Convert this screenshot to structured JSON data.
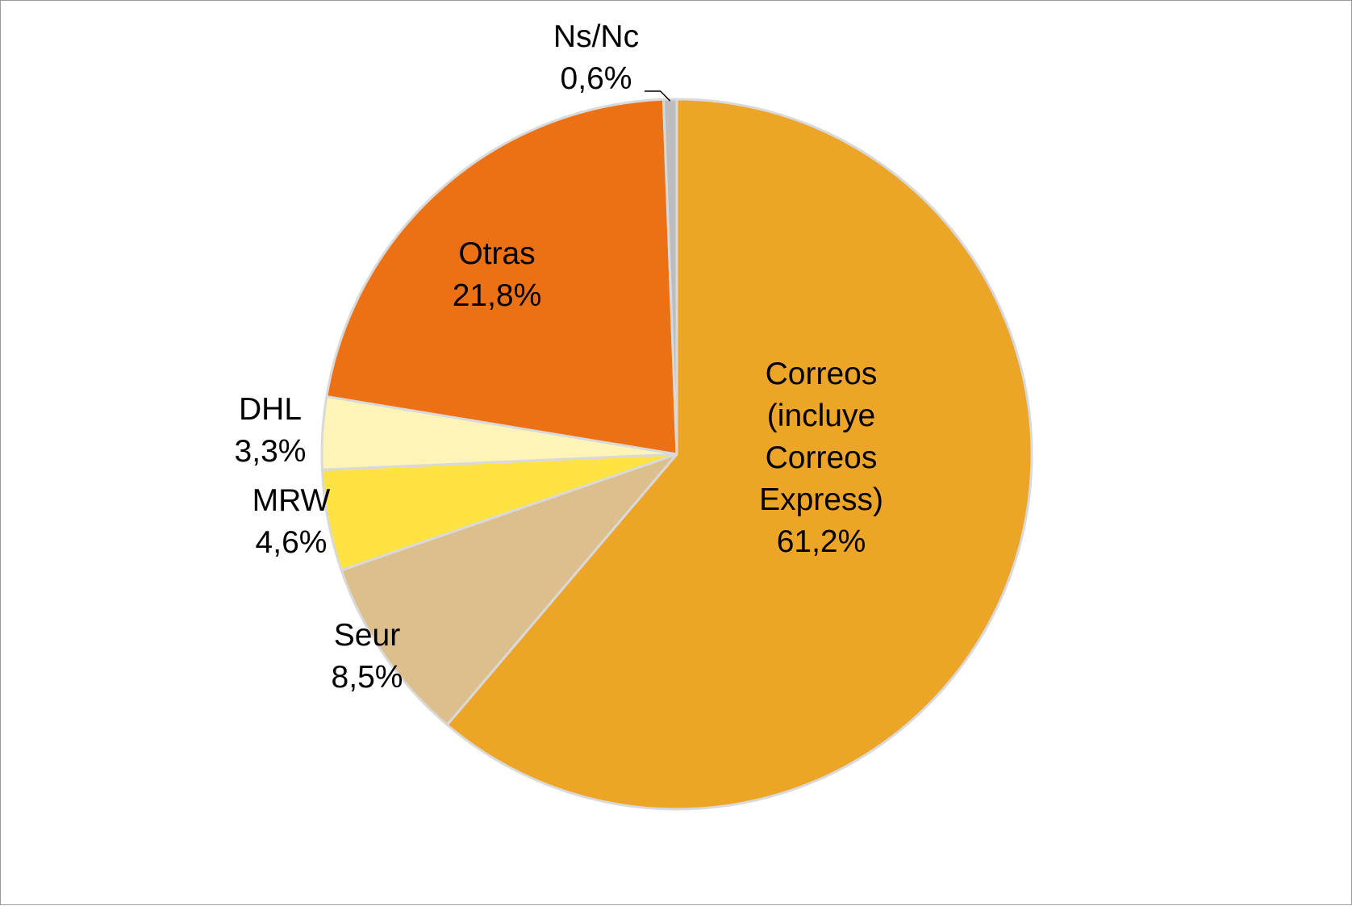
{
  "chart_data": {
    "type": "pie",
    "title": "",
    "start_angle_deg": 0,
    "direction": "clockwise",
    "slices": [
      {
        "name": "Correos (incluye Correos Express)",
        "label_lines": [
          "Correos",
          "(incluye",
          "Correos",
          "Express)"
        ],
        "value": 61.2,
        "value_label": "61,2%",
        "color": "#EDA528"
      },
      {
        "name": "Seur",
        "label_lines": [
          "Seur"
        ],
        "value": 8.5,
        "value_label": "8,5%",
        "color": "#DDBF8D"
      },
      {
        "name": "MRW",
        "label_lines": [
          "MRW"
        ],
        "value": 4.6,
        "value_label": "4,6%",
        "color": "#FFE343"
      },
      {
        "name": "DHL",
        "label_lines": [
          "DHL"
        ],
        "value": 3.3,
        "value_label": "3,3%",
        "color": "#FFF4B7"
      },
      {
        "name": "Otras",
        "label_lines": [
          "Otras"
        ],
        "value": 21.8,
        "value_label": "21,8%",
        "color": "#EC7115"
      },
      {
        "name": "Ns/Nc",
        "label_lines": [
          "Ns/Nc"
        ],
        "value": 0.6,
        "value_label": "0,6%",
        "color": "#BDBDBD"
      }
    ],
    "slice_border_color": "#D9D9D9",
    "legend": "none"
  }
}
